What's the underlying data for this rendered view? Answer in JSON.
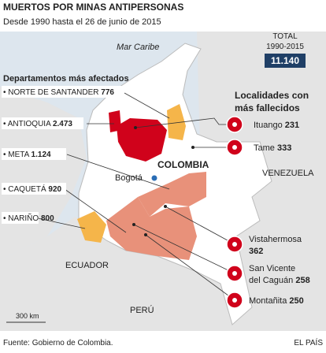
{
  "header": {
    "title": "MUERTOS POR MINAS ANTIPERSONAS",
    "subtitle": "Desde 1990 hasta el 26 de junio de 2015"
  },
  "total": {
    "label": "TOTAL",
    "period": "1990-2015",
    "value": "11.140"
  },
  "departments": {
    "heading": "Departamentos más afectados",
    "items": [
      {
        "name": "NORTE DE SANTANDER",
        "value": "776"
      },
      {
        "name": "ANTIOQUIA",
        "value": "2.473"
      },
      {
        "name": "META",
        "value": "1.124"
      },
      {
        "name": "CAQUETÁ",
        "value": "920"
      },
      {
        "name": "NARIÑO",
        "value": "800"
      }
    ]
  },
  "localities": {
    "heading": [
      "Localidades con",
      "más fallecidos"
    ],
    "items": [
      {
        "name": [
          "Ituango"
        ],
        "value": "231"
      },
      {
        "name": [
          "Tame"
        ],
        "value": "333"
      },
      {
        "name": [
          "Vistahermosa"
        ],
        "value": "362"
      },
      {
        "name": [
          "San Vicente",
          "del Caguán"
        ],
        "value": "258"
      },
      {
        "name": [
          "Montañita"
        ],
        "value": "250"
      }
    ]
  },
  "map_labels": {
    "sea": "Mar Caribe",
    "country": "COLOMBIA",
    "capital": "Bogotá",
    "venezuela": "VENEZUELA",
    "ecuador": "ECUADOR",
    "peru": "PERÚ",
    "scale": "300 km"
  },
  "footer": {
    "source": "Fuente: Gobierno de Colombia.",
    "credit": "EL PAÍS"
  }
}
